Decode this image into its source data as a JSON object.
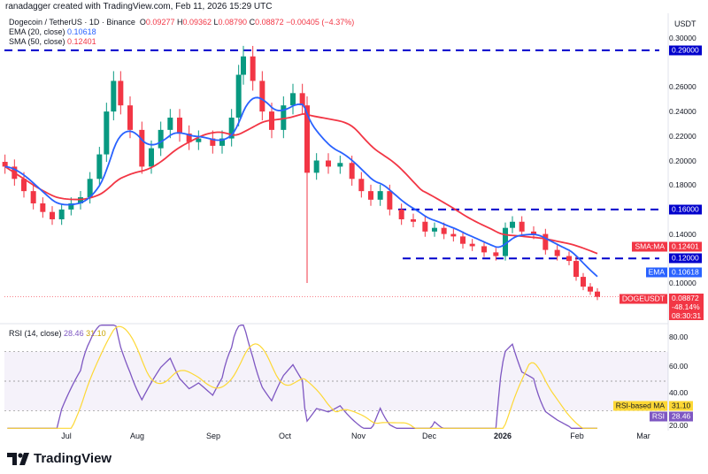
{
  "credit": "ranadagger created with TradingView.com, Feb 11, 2026 15:29 UTC",
  "symbol": "Dogecoin / TetherUS · 1D · Binance",
  "ohlc": {
    "o": "0.09277",
    "h": "0.09362",
    "l": "0.08790",
    "c": "0.08872",
    "chg": "−0.00405 (−4.37%)"
  },
  "ema": {
    "label": "EMA (20, close)",
    "value": "0.10618",
    "tag": "EMA"
  },
  "sma": {
    "label": "SMA (50, close)",
    "value": "0.12401",
    "tag": "SMA:MA"
  },
  "rsi": {
    "label": "RSI (14, close)",
    "value": "28.46",
    "ma": "31.10",
    "tag": "RSI",
    "ma_tag": "RSI-based MA"
  },
  "last": {
    "tag": "DOGEUSDT",
    "price": "0.08872",
    "pct": "-48.14%",
    "countdown": "08:30:31"
  },
  "currency": "USDT",
  "brand": "TradingView",
  "colors": {
    "up": "#089981",
    "down": "#f23645",
    "ema": "#2962ff",
    "sma": "#f23645",
    "rsi": "#7e57c2",
    "rsi_ma": "#fdd835",
    "level": "#0000cc"
  },
  "chart_data": {
    "type": "candlestick",
    "interval": "1D",
    "x": [
      "2025-06-05",
      "2025-06-09",
      "2025-06-13",
      "2025-06-17",
      "2025-06-21",
      "2025-06-25",
      "2025-06-29",
      "2025-07-03",
      "2025-07-07",
      "2025-07-11",
      "2025-07-15",
      "2025-07-18",
      "2025-07-21",
      "2025-07-24",
      "2025-07-28",
      "2025-08-02",
      "2025-08-06",
      "2025-08-10",
      "2025-08-14",
      "2025-08-18",
      "2025-08-22",
      "2025-08-26",
      "2025-09-01",
      "2025-09-05",
      "2025-09-09",
      "2025-09-12",
      "2025-09-14",
      "2025-09-18",
      "2025-09-22",
      "2025-09-26",
      "2025-10-01",
      "2025-10-05",
      "2025-10-09",
      "2025-10-11",
      "2025-10-15",
      "2025-10-20",
      "2025-10-25",
      "2025-10-30",
      "2025-11-03",
      "2025-11-07",
      "2025-11-11",
      "2025-11-15",
      "2025-11-20",
      "2025-11-25",
      "2025-11-30",
      "2025-12-04",
      "2025-12-08",
      "2025-12-12",
      "2025-12-16",
      "2025-12-20",
      "2025-12-25",
      "2025-12-30",
      "2026-01-03",
      "2026-01-06",
      "2026-01-10",
      "2026-01-15",
      "2026-01-20",
      "2026-01-25",
      "2026-01-30",
      "2026-02-02",
      "2026-02-05",
      "2026-02-08",
      "2026-02-11"
    ],
    "close": [
      0.195,
      0.185,
      0.175,
      0.165,
      0.158,
      0.152,
      0.16,
      0.165,
      0.17,
      0.185,
      0.205,
      0.24,
      0.265,
      0.245,
      0.225,
      0.195,
      0.21,
      0.225,
      0.235,
      0.222,
      0.215,
      0.218,
      0.212,
      0.218,
      0.235,
      0.27,
      0.285,
      0.265,
      0.24,
      0.225,
      0.245,
      0.255,
      0.245,
      0.19,
      0.2,
      0.195,
      0.198,
      0.185,
      0.175,
      0.168,
      0.175,
      0.16,
      0.152,
      0.15,
      0.142,
      0.145,
      0.14,
      0.138,
      0.132,
      0.13,
      0.125,
      0.122,
      0.145,
      0.15,
      0.142,
      0.14,
      0.127,
      0.122,
      0.118,
      0.105,
      0.097,
      0.093,
      0.0887
    ],
    "price_levels": [
      0.29,
      0.16,
      0.12
    ],
    "indicators": [
      "EMA (20, close)",
      "SMA (50, close)",
      "RSI (14, close)"
    ],
    "y_ticks": [
      "0.30000",
      "0.26000",
      "0.24000",
      "0.22000",
      "0.20000",
      "0.18000",
      "0.14000",
      "0.10000"
    ],
    "rsi_ticks": [
      "80.00",
      "60.00",
      "40.00",
      "20.00"
    ],
    "x_ticks": [
      "Jul",
      "Aug",
      "Sep",
      "Oct",
      "Nov",
      "Dec",
      "2026",
      "Feb",
      "Mar"
    ],
    "ylim": [
      0.075,
      0.31
    ],
    "rsi_lim": [
      15,
      90
    ]
  }
}
